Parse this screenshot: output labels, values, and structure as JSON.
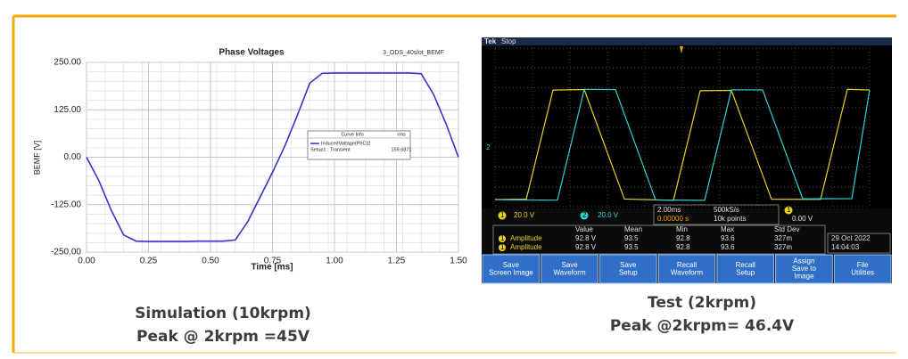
{
  "chart_data": {
    "type": "line",
    "title": "Phase Voltages",
    "subtitle": "3_ODS_40slot_BEMF",
    "x_label": "Time [ms]",
    "y_label": "BEMF [V]",
    "x": [
      0,
      0.05,
      0.1,
      0.15,
      0.2,
      0.25,
      0.3,
      0.35,
      0.4,
      0.45,
      0.5,
      0.55,
      0.6,
      0.65,
      0.7,
      0.75,
      0.8,
      0.85,
      0.9,
      0.95,
      1.0,
      1.05,
      1.1,
      1.15,
      1.2,
      1.25,
      1.3,
      1.35,
      1.4,
      1.45,
      1.5
    ],
    "series": [
      {
        "name": "InducedVoltage(PhC)2",
        "color": "#3434c8",
        "values": [
          0,
          -62,
          -140,
          -205,
          -221,
          -222,
          -222,
          -222,
          -222,
          -221,
          -221,
          -221,
          -218,
          -170,
          -105,
          -40,
          30,
          110,
          195,
          221,
          222,
          222,
          222,
          222,
          222,
          222,
          222,
          220,
          165,
          88,
          0
        ]
      }
    ],
    "legend_title": "Curve Info",
    "legend_stat": "rms",
    "legend_setup": "Setup1 : Transient",
    "legend_value": "159.6871",
    "xlim": [
      0,
      1.5
    ],
    "ylim": [
      -250,
      250
    ],
    "xticks": [
      {
        "value": 0,
        "label": "0.00"
      },
      {
        "value": 0.25,
        "label": "0.25"
      },
      {
        "value": 0.5,
        "label": "0.50"
      },
      {
        "value": 0.75,
        "label": "0.75"
      },
      {
        "value": 1.0,
        "label": "1.00"
      },
      {
        "value": 1.25,
        "label": "1.25"
      },
      {
        "value": 1.5,
        "label": "1.50"
      }
    ],
    "yticks": [
      {
        "value": -250,
        "label": "-250.00"
      },
      {
        "value": -125,
        "label": "-125.00"
      },
      {
        "value": 0,
        "label": "0.00"
      },
      {
        "value": 125,
        "label": "125.00"
      },
      {
        "value": 250,
        "label": "250.00"
      }
    ],
    "grid": true
  },
  "scope": {
    "brand": "Tek",
    "status": "Stop",
    "channels": [
      "1",
      "2"
    ],
    "ch1_scale": "20.0 V",
    "ch2_scale": "20.0 V",
    "timebase": "2.00ms",
    "sample_rate": "500kS/s",
    "trigger_pos": "0.00000 s",
    "record": "10k points",
    "trigger_level": "0.00 V",
    "measure_headers": [
      "Value",
      "Mean",
      "Min",
      "Max",
      "Std Dev"
    ],
    "measure_rows": [
      [
        "Amplitude",
        "92.8 V",
        "93.5",
        "92.8",
        "93.6",
        "327m"
      ],
      [
        "Amplitude",
        "92.8 V",
        "93.5",
        "92.8",
        "93.6",
        "327m"
      ]
    ],
    "date": "29 Oct 2022",
    "time": "14:04:03",
    "buttons": [
      [
        "Save",
        "Screen Image"
      ],
      [
        "Save",
        "Waveform"
      ],
      [
        "Save",
        "Setup"
      ],
      [
        "Recall",
        "Waveform"
      ],
      [
        "Recall",
        "Setup"
      ],
      [
        "Assign",
        "Save to",
        "Image"
      ],
      [
        "File",
        "Utilities"
      ]
    ]
  },
  "captions": {
    "left": [
      "Simulation (10krpm)",
      "Peak @ 2krpm =45V"
    ],
    "right": [
      "Test (2krpm)",
      "Peak @2krpm= 46.4V"
    ]
  }
}
